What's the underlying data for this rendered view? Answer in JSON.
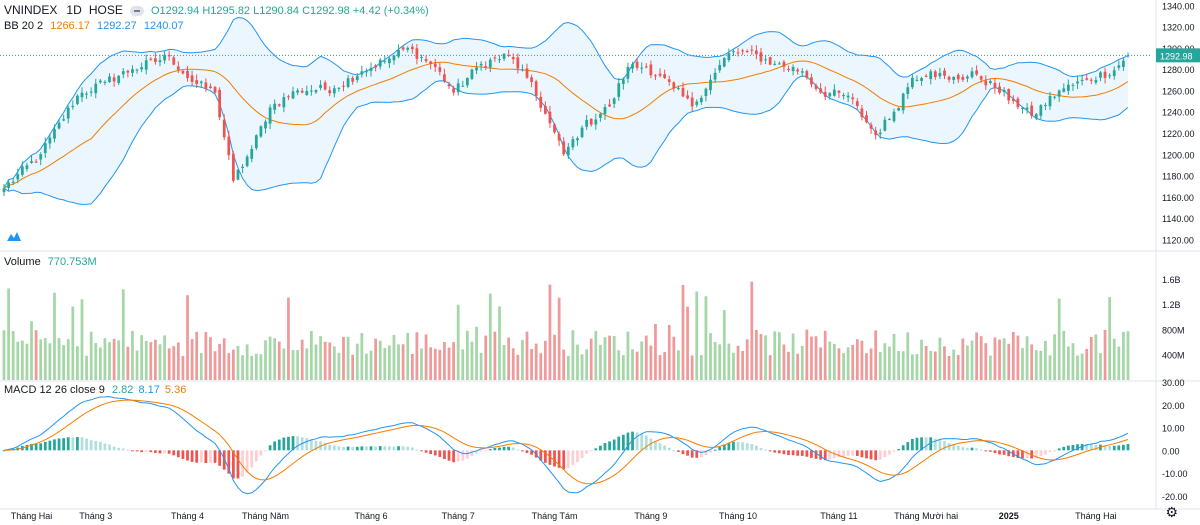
{
  "header": {
    "symbol": "VNINDEX",
    "interval": "1D",
    "exchange": "HOSE",
    "open": "O1292.94",
    "high": "H1295.82",
    "low": "L1290.84",
    "close": "C1292.98",
    "change": "+4.42 (+0.34%)"
  },
  "bb_header": {
    "label": "BB 20 2",
    "basis": "1266.17",
    "upper": "1292.27",
    "lower": "1240.07"
  },
  "volume_header": {
    "label": "Volume",
    "value": "770.753M"
  },
  "macd_header": {
    "label": "MACD 12 26 close 9",
    "hist": "2.82",
    "macd": "8.17",
    "signal": "5.36"
  },
  "price_badge": "1292.98",
  "colors": {
    "up": "#26a69a",
    "down": "#ef5350",
    "upVol": "#a5d6a7",
    "downVol": "#ef9a9a",
    "bbLine": "#2196f3",
    "bbFill": "#e3f2fd",
    "basis": "#f57c00",
    "macdLine": "#2196f3",
    "signalLine": "#f57c00"
  },
  "icons": {
    "settings": "gear-icon",
    "logo": "tv-logo-icon"
  },
  "chart_data": [
    {
      "type": "candlestick",
      "title": "VNINDEX 1D HOSE",
      "ylim": [
        1110,
        1345
      ],
      "yticks": [
        "1120.00",
        "1140.00",
        "1160.00",
        "1180.00",
        "1200.00",
        "1220.00",
        "1240.00",
        "1260.00",
        "1280.00",
        "1300.00",
        "1320.00",
        "1340.00"
      ],
      "x_labels": [
        "Tháng Hai",
        "Tháng 3",
        "Tháng 4",
        "Tháng Năm",
        "Tháng 6",
        "Tháng 7",
        "Tháng Tám",
        "Tháng 9",
        "Tháng 10",
        "Tháng 11",
        "Tháng Mười hai",
        "2025",
        "Tháng Hai"
      ],
      "label_bar_index": [
        6,
        20,
        40,
        57,
        80,
        99,
        120,
        141,
        160,
        182,
        201,
        219,
        238
      ],
      "close_anchors": [
        [
          0,
          1168
        ],
        [
          8,
          1200
        ],
        [
          16,
          1255
        ],
        [
          22,
          1268
        ],
        [
          28,
          1280
        ],
        [
          36,
          1292
        ],
        [
          41,
          1268
        ],
        [
          46,
          1258
        ],
        [
          50,
          1175
        ],
        [
          54,
          1205
        ],
        [
          58,
          1244
        ],
        [
          64,
          1260
        ],
        [
          72,
          1262
        ],
        [
          78,
          1278
        ],
        [
          84,
          1290
        ],
        [
          88,
          1300
        ],
        [
          94,
          1282
        ],
        [
          98,
          1258
        ],
        [
          104,
          1285
        ],
        [
          110,
          1293
        ],
        [
          114,
          1272
        ],
        [
          118,
          1238
        ],
        [
          122,
          1200
        ],
        [
          126,
          1225
        ],
        [
          132,
          1245
        ],
        [
          136,
          1282
        ],
        [
          140,
          1282
        ],
        [
          146,
          1262
        ],
        [
          150,
          1245
        ],
        [
          154,
          1270
        ],
        [
          158,
          1295
        ],
        [
          162,
          1296
        ],
        [
          168,
          1285
        ],
        [
          174,
          1278
        ],
        [
          178,
          1258
        ],
        [
          184,
          1255
        ],
        [
          190,
          1218
        ],
        [
          194,
          1240
        ],
        [
          198,
          1272
        ],
        [
          202,
          1278
        ],
        [
          206,
          1270
        ],
        [
          212,
          1275
        ],
        [
          216,
          1262
        ],
        [
          220,
          1250
        ],
        [
          224,
          1236
        ],
        [
          230,
          1260
        ],
        [
          236,
          1270
        ],
        [
          242,
          1279
        ],
        [
          245,
          1293
        ]
      ],
      "bollinger": {
        "period": 20,
        "mult": 2
      }
    },
    {
      "type": "bar",
      "title": "Volume",
      "yticks": [
        "400M",
        "800M",
        "1.2B",
        "1.6B"
      ],
      "ylim": [
        0,
        1900
      ],
      "unit": "M"
    },
    {
      "type": "bar",
      "title": "MACD 12 26 close 9",
      "yticks": [
        "-20.00",
        "-10.00",
        "0.00",
        "10.00",
        "20.00",
        "30.00"
      ],
      "ylim": [
        -24,
        30
      ]
    }
  ]
}
